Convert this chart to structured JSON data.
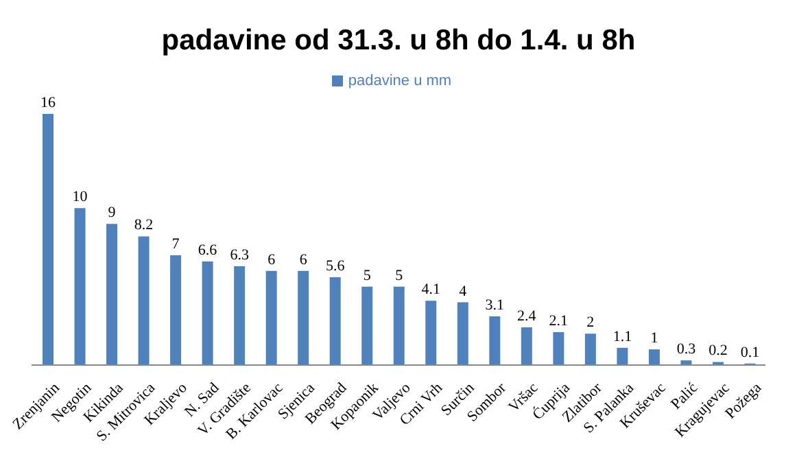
{
  "chart_data": {
    "type": "bar",
    "title": "padavine od 31.3. u 8h do 1.4. u 8h",
    "categories": [
      "Zrenjanin",
      "Negotin",
      "Kikinda",
      "S. Mitrovica",
      "Kraljevo",
      "N. Sad",
      "V. Gradište",
      "B. Karlovac",
      "Sjenica",
      "Beograd",
      "Kopaonik",
      "Valjevo",
      "Crni Vrh",
      "Surčin",
      "Sombor",
      "Vršac",
      "Ćuprija",
      "Zlatibor",
      "S. Palanka",
      "Kruševac",
      "Palić",
      "Kragujevac",
      "Požega"
    ],
    "series": [
      {
        "name": "padavine u mm",
        "color": "#4f81bd",
        "values": [
          16,
          10,
          9,
          8.2,
          7,
          6.6,
          6.3,
          6,
          6,
          5.6,
          5,
          5,
          4.1,
          4,
          3.1,
          2.4,
          2.1,
          2,
          1.1,
          1,
          0.3,
          0.2,
          0.1
        ]
      }
    ],
    "data_labels": true,
    "legend": "top",
    "tick_labels": "x",
    "grid": false
  }
}
